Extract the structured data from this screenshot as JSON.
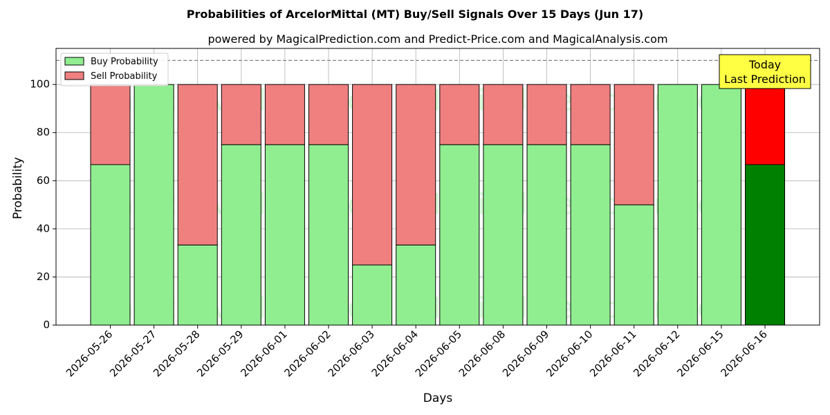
{
  "chart_data": {
    "type": "bar",
    "stacked": true,
    "title": "Probabilities of ArcelorMittal (MT) Buy/Sell Signals Over 15 Days (Jun 17)",
    "subtitle": "powered by MagicalPrediction.com and Predict-Price.com and MagicalAnalysis.com",
    "xlabel": "Days",
    "ylabel": "Probability",
    "ylim": [
      0,
      115
    ],
    "yticks": [
      0,
      20,
      40,
      60,
      80,
      100
    ],
    "reference_line": 110,
    "grid": true,
    "legend_position": "top-left",
    "categories": [
      "2026-05-26",
      "2026-05-27",
      "2026-05-28",
      "2026-05-29",
      "2026-06-01",
      "2026-06-02",
      "2026-06-03",
      "2026-06-04",
      "2026-06-05",
      "2026-06-08",
      "2026-06-09",
      "2026-06-10",
      "2026-06-11",
      "2026-06-12",
      "2026-06-15",
      "2026-06-16"
    ],
    "series": [
      {
        "name": "Buy Probability",
        "color": "#90ee90",
        "highlight_color": "#008000",
        "values": [
          66.7,
          100,
          33.3,
          75,
          75,
          75,
          25,
          33.3,
          75,
          75,
          75,
          75,
          50,
          100,
          100,
          66.7
        ]
      },
      {
        "name": "Sell Probability",
        "color": "#f08080",
        "highlight_color": "#ff0000",
        "values": [
          33.3,
          0,
          66.7,
          25,
          25,
          25,
          75,
          66.7,
          25,
          25,
          25,
          25,
          50,
          0,
          0,
          33.3
        ]
      }
    ],
    "highlight_index": 15,
    "annotation": {
      "lines": [
        "Today",
        "Last Prediction"
      ],
      "color": "#ffff44"
    },
    "watermarks": [
      "MagicalAnalysis.com",
      "MagicalPrediction.com"
    ]
  }
}
